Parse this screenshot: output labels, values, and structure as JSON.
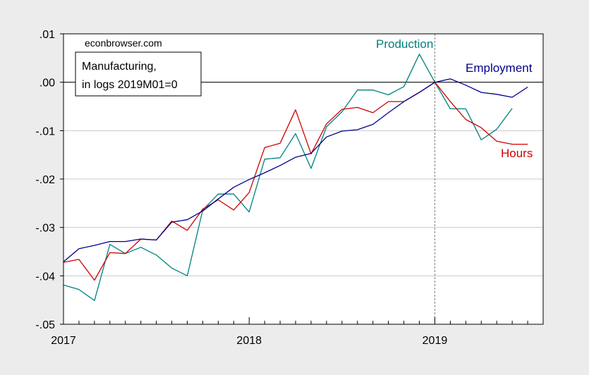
{
  "chart_data": {
    "type": "line",
    "watermark": "econbrowser.com",
    "note": [
      "Manufacturing,",
      "in logs 2019M01=0"
    ],
    "x_start": "2017M01",
    "x_tick_labels": [
      "2017",
      "2018",
      "2019"
    ],
    "xlim": [
      "2017M01",
      "2019M08"
    ],
    "ylim": [
      -0.05,
      0.01
    ],
    "y_ticks": [
      0.01,
      0.0,
      -0.01,
      -0.02,
      -0.03,
      -0.04,
      -0.05
    ],
    "y_tick_labels": [
      ".01",
      ".00",
      "-.01",
      "-.02",
      "-.03",
      "-.04",
      "-.05"
    ],
    "grid": true,
    "zero_line": true,
    "reference_line_at": "2019M01",
    "series": [
      {
        "name": "Production",
        "color": "#008080",
        "values": [
          -0.0419,
          -0.0428,
          -0.0451,
          -0.0335,
          -0.0354,
          -0.0341,
          -0.0357,
          -0.0384,
          -0.04,
          -0.0264,
          -0.0231,
          -0.0231,
          -0.0268,
          -0.0159,
          -0.0156,
          -0.0106,
          -0.0178,
          -0.0092,
          -0.0061,
          -0.0016,
          -0.0016,
          -0.0026,
          -0.0009,
          0.0058,
          0.0,
          -0.0055,
          -0.0055,
          -0.0119,
          -0.0097,
          -0.0054
        ]
      },
      {
        "name": "Hours",
        "color": "#d00000",
        "values": [
          -0.0372,
          -0.0366,
          -0.0409,
          -0.0352,
          -0.0354,
          -0.0324,
          -0.0326,
          -0.0287,
          -0.0306,
          -0.0262,
          -0.0243,
          -0.0264,
          -0.0228,
          -0.0135,
          -0.0126,
          -0.0057,
          -0.0148,
          -0.0086,
          -0.0056,
          -0.0052,
          -0.0063,
          -0.004,
          -0.004,
          -0.0021,
          0.0,
          -0.004,
          -0.0077,
          -0.0094,
          -0.0122,
          -0.0128,
          -0.0128
        ]
      },
      {
        "name": "Employment",
        "color": "#00008b",
        "values": [
          -0.0371,
          -0.0344,
          -0.0337,
          -0.0329,
          -0.0329,
          -0.0324,
          -0.0326,
          -0.0289,
          -0.0284,
          -0.0266,
          -0.0241,
          -0.0217,
          -0.0201,
          -0.0187,
          -0.0172,
          -0.0155,
          -0.0147,
          -0.0113,
          -0.0101,
          -0.0098,
          -0.0087,
          -0.0063,
          -0.004,
          -0.0021,
          0.0,
          0.0007,
          -0.0006,
          -0.0021,
          -0.0025,
          -0.0031,
          -0.001
        ]
      }
    ]
  }
}
